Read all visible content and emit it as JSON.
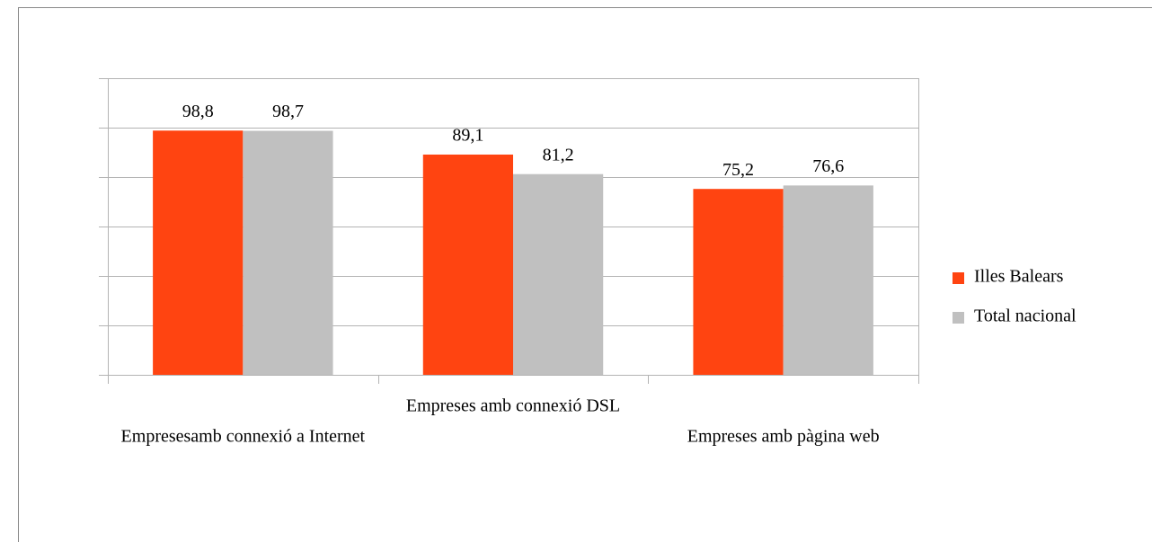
{
  "chart_data": {
    "type": "bar",
    "categories": [
      "Empresesamb connexió a Internet",
      "Empreses amb connexió DSL",
      "Empreses amb pàgina web"
    ],
    "series": [
      {
        "name": "Illes Balears",
        "color": "#ff4411",
        "values": [
          98.8,
          89.1,
          75.2
        ],
        "value_labels": [
          "98,8",
          "89,1",
          "75,2"
        ]
      },
      {
        "name": "Total nacional",
        "color": "#c0c0c0",
        "values": [
          98.7,
          81.2,
          76.6
        ],
        "value_labels": [
          "98,7",
          "81,2",
          "76,6"
        ]
      }
    ],
    "ylim": [
      0,
      120
    ],
    "yticks": [
      0,
      20,
      40,
      60,
      80,
      100,
      120
    ],
    "grid": true,
    "legend": "right"
  }
}
